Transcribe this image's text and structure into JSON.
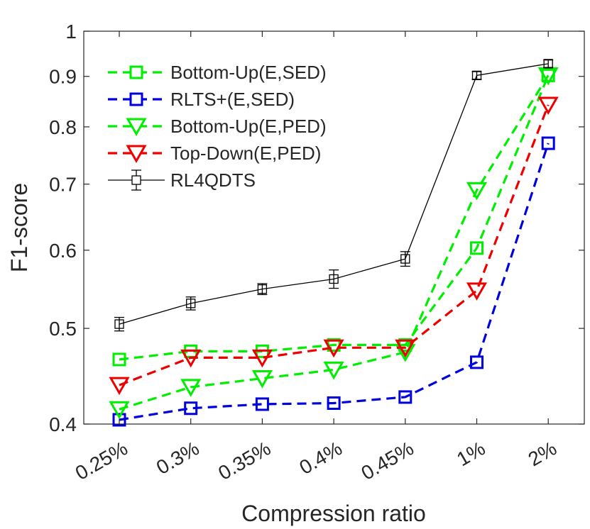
{
  "chart_data": {
    "type": "line",
    "xlabel": "Compression ratio",
    "ylabel": "F1-score",
    "yscale": "log",
    "ylim": [
      0.4,
      1.0
    ],
    "yticks": [
      0.4,
      0.5,
      0.6,
      0.7,
      0.8,
      0.9,
      1
    ],
    "ytick_labels": [
      "0.4",
      "0.5",
      "0.6",
      "0.7",
      "0.8",
      "0.9",
      "1"
    ],
    "categories": [
      "0.25%",
      "0.3%",
      "0.35%",
      "0.4%",
      "0.45%",
      "1%",
      "2%"
    ],
    "legend_position": "top-left",
    "series": [
      {
        "name": "Bottom-Up(E,SED)",
        "color": "#00ee00",
        "line_style": "dashed",
        "marker": "square",
        "values": [
          0.465,
          0.474,
          0.474,
          0.481,
          0.481,
          0.603,
          0.902
        ]
      },
      {
        "name": "RLTS+(E,SED)",
        "color": "#0000dd",
        "line_style": "dashed",
        "marker": "square",
        "values": [
          0.404,
          0.415,
          0.419,
          0.42,
          0.426,
          0.462,
          0.77
        ]
      },
      {
        "name": "Bottom-Up(E,PED)",
        "color": "#00ee00",
        "line_style": "dashed",
        "marker": "triangle-down",
        "values": [
          0.414,
          0.436,
          0.445,
          0.454,
          0.473,
          0.69,
          0.902
        ]
      },
      {
        "name": "Top-Down(E,PED)",
        "color": "#ee0000",
        "line_style": "dashed",
        "marker": "triangle-down",
        "values": [
          0.438,
          0.467,
          0.467,
          0.478,
          0.478,
          0.546,
          0.842
        ]
      },
      {
        "name": "RL4QDTS",
        "color": "#000000",
        "line_style": "solid",
        "marker": "square",
        "error_bars": true,
        "values": [
          0.505,
          0.53,
          0.548,
          0.561,
          0.588,
          0.902,
          0.927
        ],
        "errors": [
          0.008,
          0.008,
          0.007,
          0.012,
          0.01,
          0.008,
          0.008
        ]
      }
    ]
  }
}
